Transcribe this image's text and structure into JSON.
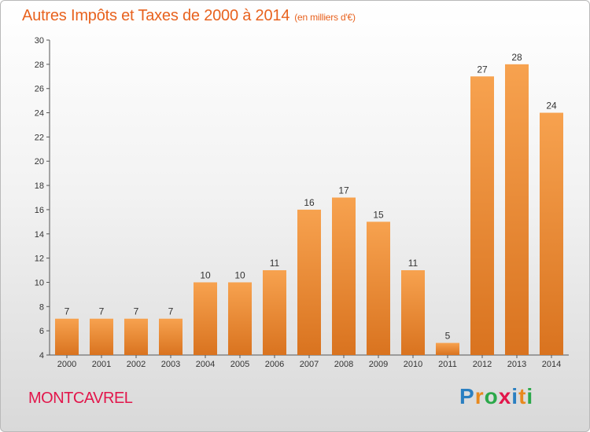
{
  "title": "Autres Impôts et Taxes de 2000 à 2014",
  "subtitle": "(en milliers d'€)",
  "commune": "MONTCAVREL",
  "logo": {
    "letters": [
      "P",
      "r",
      "o",
      "x",
      "i",
      "t",
      "i"
    ],
    "colors": [
      "#2a7fc1",
      "#e8891e",
      "#2ba84a",
      "#e2164b",
      "#2a7fc1",
      "#e8891e",
      "#2ba84a"
    ]
  },
  "colors": {
    "bar_light": "#f7a24f",
    "bar_dark": "#d9731f",
    "title": "#e8621e",
    "commune": "#e2164b"
  },
  "chart_data": {
    "type": "bar",
    "title": "Autres Impôts et Taxes de 2000 à 2014",
    "subtitle": "(en milliers d'€)",
    "categories": [
      "2000",
      "2001",
      "2002",
      "2003",
      "2004",
      "2005",
      "2006",
      "2007",
      "2008",
      "2009",
      "2010",
      "2011",
      "2012",
      "2013",
      "2014"
    ],
    "values": [
      7,
      7,
      7,
      7,
      10,
      10,
      11,
      16,
      17,
      15,
      11,
      5,
      27,
      28,
      24
    ],
    "ylim": [
      4,
      30
    ],
    "yticks": [
      4,
      6,
      8,
      10,
      12,
      14,
      16,
      18,
      20,
      22,
      24,
      26,
      28,
      30
    ],
    "grid": false,
    "data_labels": true
  }
}
